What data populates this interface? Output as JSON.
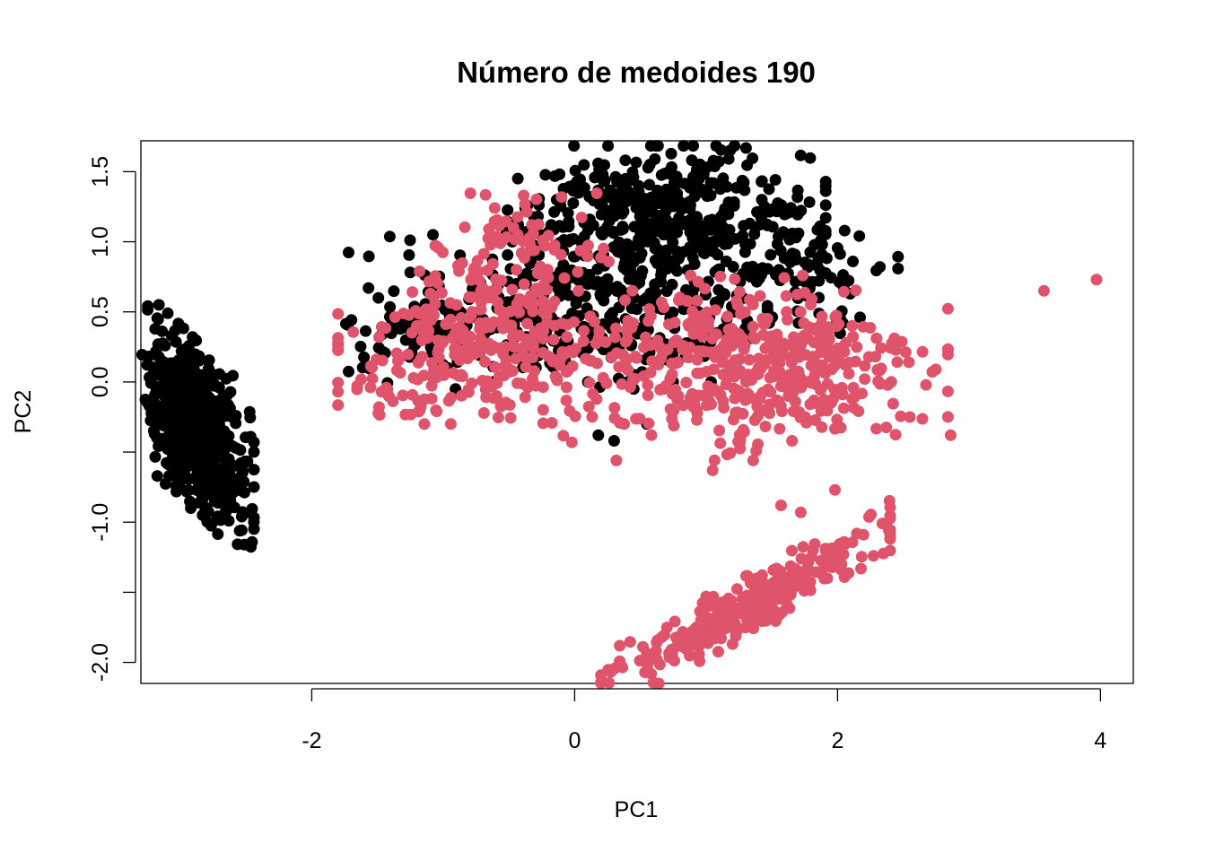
{
  "chart_data": {
    "type": "scatter",
    "title": "Número de medoides  190",
    "xlabel": "PC1",
    "ylabel": "PC2",
    "xlim": [
      -3.3,
      4.25
    ],
    "ylim": [
      -2.15,
      1.72
    ],
    "x_ticks": [
      -2,
      0,
      2,
      4
    ],
    "x_tick_labels": [
      "-2",
      "0",
      "2",
      "4"
    ],
    "y_ticks": [
      -2.0,
      -1.5,
      -1.0,
      -0.5,
      0.0,
      0.5,
      1.0,
      1.5
    ],
    "y_tick_labels": [
      "-2.0",
      "",
      "-1.0",
      "",
      "0.0",
      "0.5",
      "1.0",
      "1.5"
    ],
    "grid": false,
    "legend": "none",
    "colors": {
      "cluster_1": "#000000",
      "cluster_2": "#DF536B"
    },
    "series": [
      {
        "color": "#000000",
        "clusters": [
          {
            "region": "left-blob",
            "x_center": -2.88,
            "y_center": -0.32,
            "x_spread": 0.2,
            "y_spread": 0.28,
            "tilt": -0.9,
            "n": 700
          },
          {
            "region": "upper-right",
            "x_center": 0.7,
            "y_center": 1.2,
            "x_spread": 0.55,
            "y_spread": 0.22,
            "n": 420
          },
          {
            "region": "upper-middle",
            "x_center": -0.4,
            "y_center": 0.5,
            "x_spread": 0.6,
            "y_spread": 0.25,
            "n": 200
          },
          {
            "region": "middle",
            "x_center": 0.7,
            "y_center": 0.55,
            "x_spread": 0.6,
            "y_spread": 0.25,
            "n": 160
          },
          {
            "region": "right",
            "x_center": 1.8,
            "y_center": 0.75,
            "x_spread": 0.3,
            "y_spread": 0.15,
            "n": 60
          },
          {
            "region": "left-edge",
            "x_center": -1.3,
            "y_center": 0.35,
            "x_spread": 0.2,
            "y_spread": 0.1,
            "n": 40
          }
        ],
        "points": [
          [
            0.18,
            -0.38
          ],
          [
            0.3,
            -0.42
          ],
          [
            0.55,
            -0.3
          ],
          [
            0.45,
            -0.05
          ],
          [
            0.1,
            0.0
          ]
        ]
      },
      {
        "color": "#DF536B",
        "clusters": [
          {
            "region": "main-cloud",
            "x_center": 1.3,
            "y_center": 0.1,
            "x_spread": 0.7,
            "y_spread": 0.3,
            "n": 450
          },
          {
            "region": "left-cloud",
            "x_center": -0.7,
            "y_center": 0.25,
            "x_spread": 0.5,
            "y_spread": 0.25,
            "n": 260
          },
          {
            "region": "upper-left",
            "x_center": -0.4,
            "y_center": 0.95,
            "x_spread": 0.3,
            "y_spread": 0.18,
            "n": 80
          },
          {
            "region": "lower-band",
            "x_center": 1.3,
            "y_center": -1.6,
            "x_spread": 0.5,
            "y_spread": 0.1,
            "tilt": 0.5,
            "n": 320
          },
          {
            "region": "far-left",
            "x_center": -1.3,
            "y_center": -0.05,
            "x_spread": 0.2,
            "y_spread": 0.1,
            "n": 25
          }
        ],
        "points": [
          [
            3.57,
            0.65
          ],
          [
            3.97,
            0.73
          ],
          [
            2.86,
            -0.38
          ],
          [
            2.55,
            -0.25
          ],
          [
            1.57,
            -0.88
          ],
          [
            1.72,
            -0.93
          ],
          [
            1.98,
            -0.77
          ],
          [
            1.05,
            -0.63
          ]
        ]
      }
    ]
  }
}
